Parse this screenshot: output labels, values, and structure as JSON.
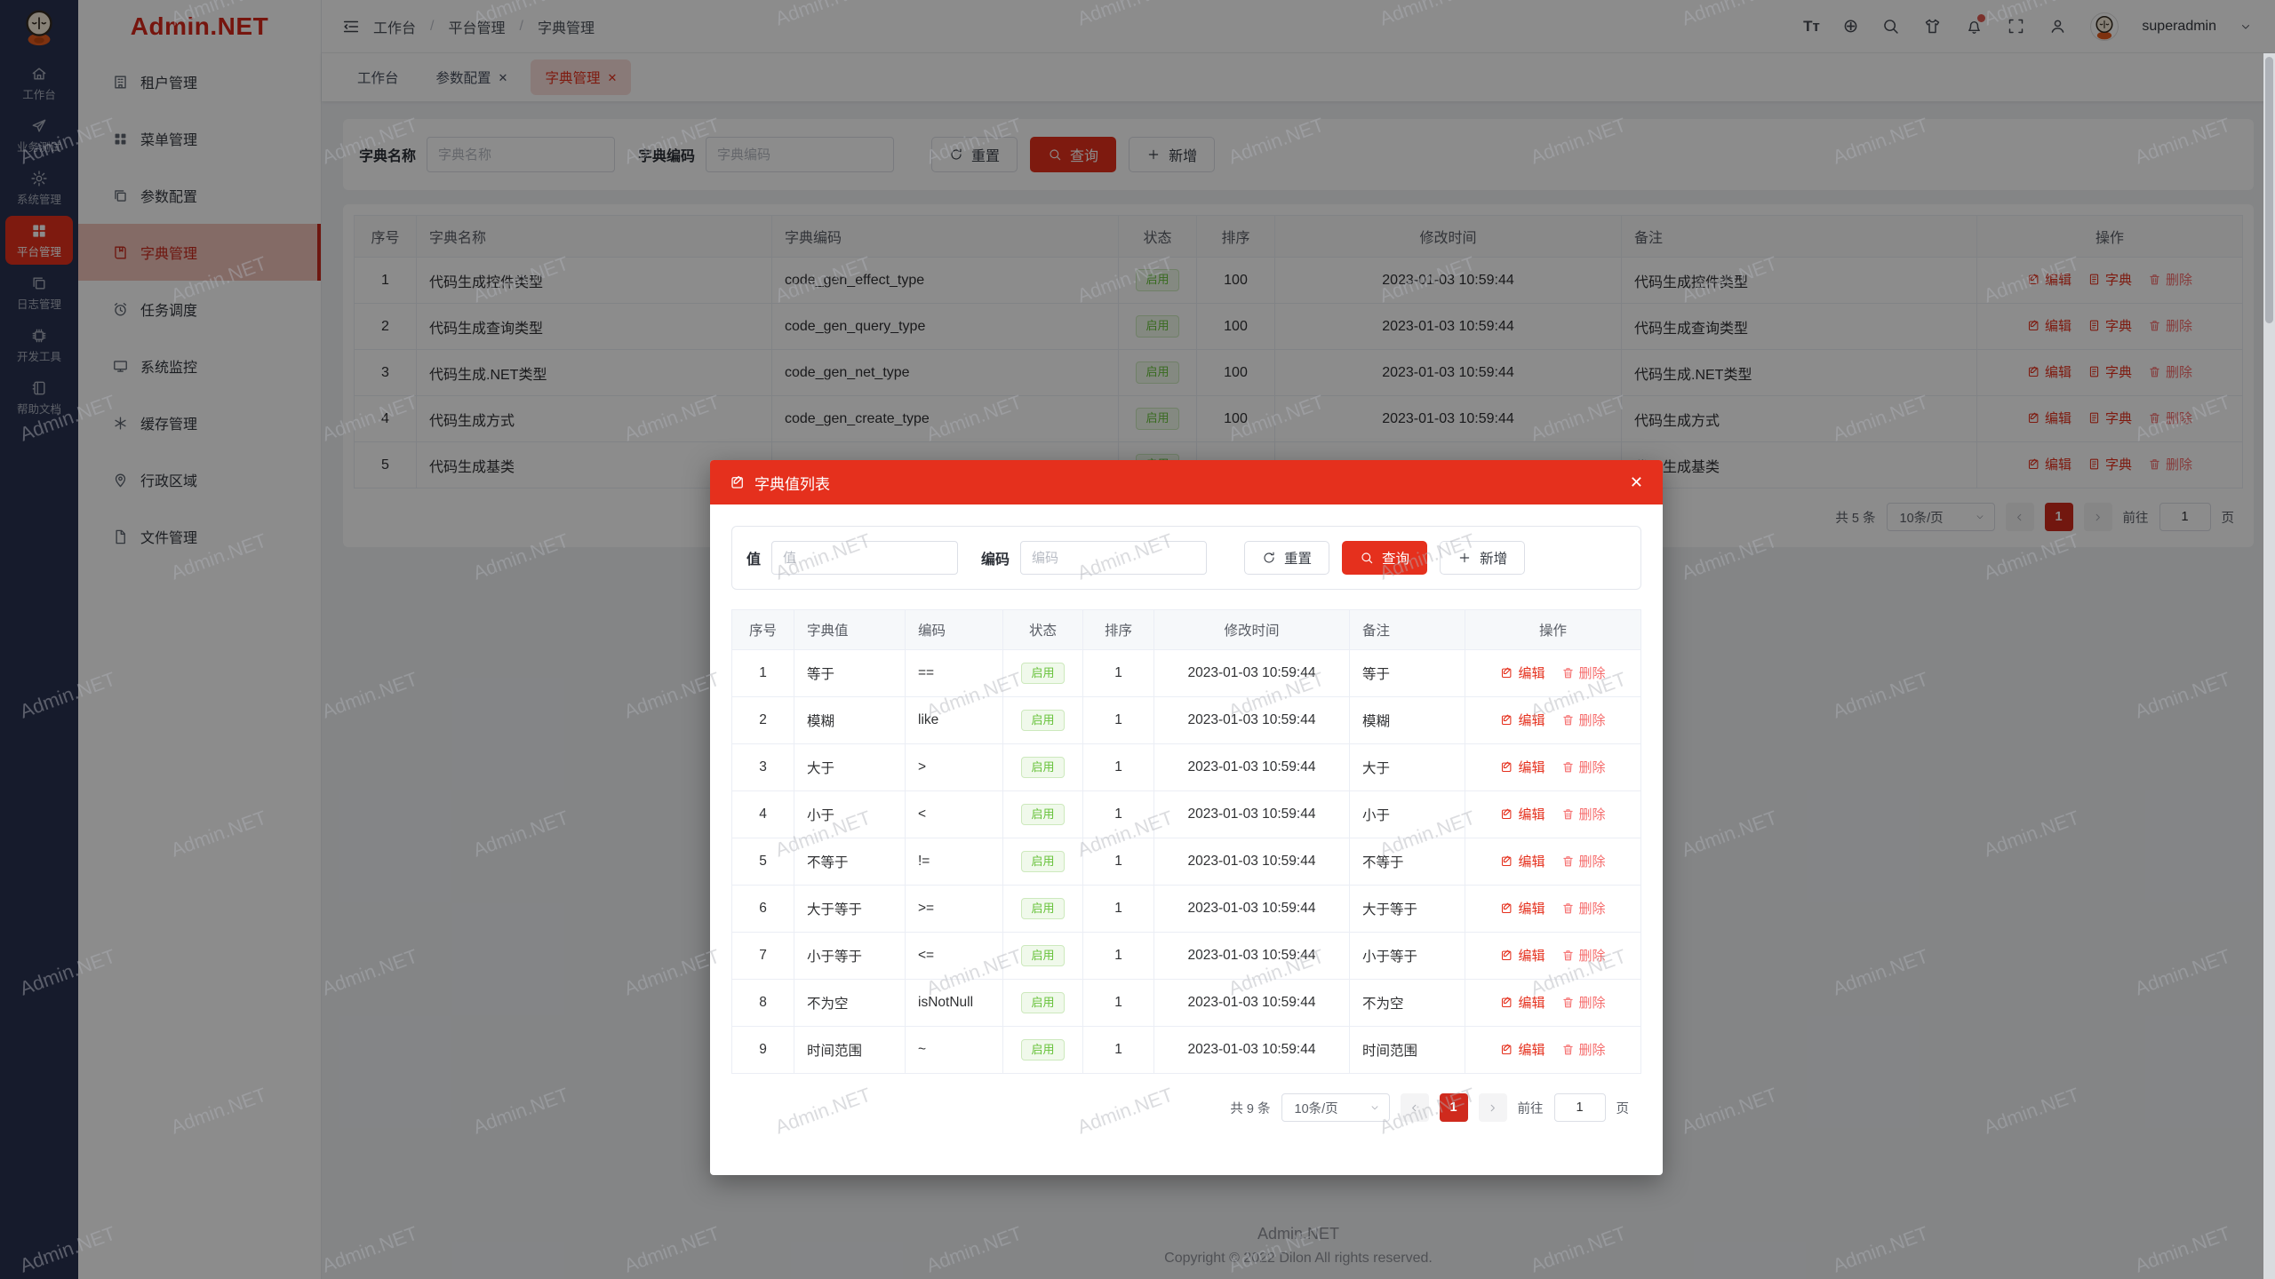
{
  "watermark": {
    "text": "Admin.NET"
  },
  "brand": {
    "logo_text": "Admin.NET"
  },
  "rail": {
    "items": [
      {
        "icon": "home-icon",
        "label": "工作台"
      },
      {
        "icon": "send-icon",
        "label": "业务测试"
      },
      {
        "icon": "gear-icon",
        "label": "系统管理"
      },
      {
        "icon": "grid-icon",
        "label": "平台管理",
        "active": true
      },
      {
        "icon": "copy-icon",
        "label": "日志管理"
      },
      {
        "icon": "chip-icon",
        "label": "开发工具"
      },
      {
        "icon": "notebook-icon",
        "label": "帮助文档"
      }
    ]
  },
  "sidebar": {
    "items": [
      {
        "icon": "building-icon",
        "label": "租户管理"
      },
      {
        "icon": "menu-grid-icon",
        "label": "菜单管理"
      },
      {
        "icon": "doc-copy-icon",
        "label": "参数配置"
      },
      {
        "icon": "book-icon",
        "label": "字典管理",
        "active": true
      },
      {
        "icon": "alarm-icon",
        "label": "任务调度"
      },
      {
        "icon": "monitor-icon",
        "label": "系统监控"
      },
      {
        "icon": "asterisk-icon",
        "label": "缓存管理"
      },
      {
        "icon": "map-pin-icon",
        "label": "行政区域"
      },
      {
        "icon": "file-icon",
        "label": "文件管理"
      }
    ]
  },
  "header": {
    "breadcrumb": [
      "工作台",
      "平台管理",
      "字典管理"
    ],
    "font_size_icon_text": "Tт",
    "language_icon_glyph": "⊕",
    "icons": [
      "font-size",
      "language",
      "search",
      "theme",
      "notification",
      "fullscreen",
      "user"
    ],
    "user": "superadmin"
  },
  "tabs": [
    {
      "label": "工作台"
    },
    {
      "label": "参数配置",
      "closable": true
    },
    {
      "label": "字典管理",
      "closable": true,
      "active": true
    }
  ],
  "close_glyph": "✕",
  "filter": {
    "name_label": "字典名称",
    "name_placeholder": "字典名称",
    "code_label": "字典编码",
    "code_placeholder": "字典编码",
    "reset": "重置",
    "search": "查询",
    "add": "新增"
  },
  "table": {
    "columns": [
      "序号",
      "字典名称",
      "字典编码",
      "状态",
      "排序",
      "修改时间",
      "备注",
      "操作"
    ],
    "actions": {
      "edit": "编辑",
      "dict": "字典",
      "del": "删除"
    },
    "rows": [
      {
        "no": "1",
        "name": "代码生成控件类型",
        "code": "code_gen_effect_type",
        "status": "启用",
        "sort": "100",
        "time": "2023-01-03 10:59:44",
        "remark": "代码生成控件类型"
      },
      {
        "no": "2",
        "name": "代码生成查询类型",
        "code": "code_gen_query_type",
        "status": "启用",
        "sort": "100",
        "time": "2023-01-03 10:59:44",
        "remark": "代码生成查询类型"
      },
      {
        "no": "3",
        "name": "代码生成.NET类型",
        "code": "code_gen_net_type",
        "status": "启用",
        "sort": "100",
        "time": "2023-01-03 10:59:44",
        "remark": "代码生成.NET类型"
      },
      {
        "no": "4",
        "name": "代码生成方式",
        "code": "code_gen_create_type",
        "status": "启用",
        "sort": "100",
        "time": "2023-01-03 10:59:44",
        "remark": "代码生成方式"
      },
      {
        "no": "5",
        "name": "代码生成基类",
        "code": "",
        "status": "启用",
        "sort": "",
        "time": "",
        "remark": "代码生成基类"
      }
    ]
  },
  "pagination": {
    "total": "共 5 条",
    "page_size": "10条/页",
    "page": "1",
    "goto_label": "前往",
    "goto_value": "1",
    "unit": "页"
  },
  "modal": {
    "title": "字典值列表",
    "filter": {
      "value_label": "值",
      "value_placeholder": "值",
      "code_label": "编码",
      "code_placeholder": "编码",
      "reset": "重置",
      "search": "查询",
      "add": "新增"
    },
    "table": {
      "columns": [
        "序号",
        "字典值",
        "编码",
        "状态",
        "排序",
        "修改时间",
        "备注",
        "操作"
      ],
      "actions": {
        "edit": "编辑",
        "del": "删除"
      },
      "rows": [
        {
          "no": "1",
          "value": "等于",
          "code": "==",
          "status": "启用",
          "sort": "1",
          "time": "2023-01-03 10:59:44",
          "remark": "等于"
        },
        {
          "no": "2",
          "value": "模糊",
          "code": "like",
          "status": "启用",
          "sort": "1",
          "time": "2023-01-03 10:59:44",
          "remark": "模糊"
        },
        {
          "no": "3",
          "value": "大于",
          "code": ">",
          "status": "启用",
          "sort": "1",
          "time": "2023-01-03 10:59:44",
          "remark": "大于"
        },
        {
          "no": "4",
          "value": "小于",
          "code": "<",
          "status": "启用",
          "sort": "1",
          "time": "2023-01-03 10:59:44",
          "remark": "小于"
        },
        {
          "no": "5",
          "value": "不等于",
          "code": "!=",
          "status": "启用",
          "sort": "1",
          "time": "2023-01-03 10:59:44",
          "remark": "不等于"
        },
        {
          "no": "6",
          "value": "大于等于",
          "code": ">=",
          "status": "启用",
          "sort": "1",
          "time": "2023-01-03 10:59:44",
          "remark": "大于等于"
        },
        {
          "no": "7",
          "value": "小于等于",
          "code": "<=",
          "status": "启用",
          "sort": "1",
          "time": "2023-01-03 10:59:44",
          "remark": "小于等于"
        },
        {
          "no": "8",
          "value": "不为空",
          "code": "isNotNull",
          "status": "启用",
          "sort": "1",
          "time": "2023-01-03 10:59:44",
          "remark": "不为空"
        },
        {
          "no": "9",
          "value": "时间范围",
          "code": "~",
          "status": "启用",
          "sort": "1",
          "time": "2023-01-03 10:59:44",
          "remark": "时间范围"
        }
      ]
    },
    "pagination": {
      "total": "共 9 条",
      "page_size": "10条/页",
      "page": "1",
      "goto_label": "前往",
      "goto_value": "1",
      "unit": "页"
    }
  },
  "footer": {
    "line1": "Admin.NET",
    "line2": "Copyright © 2022 Dilon All rights reserved."
  }
}
